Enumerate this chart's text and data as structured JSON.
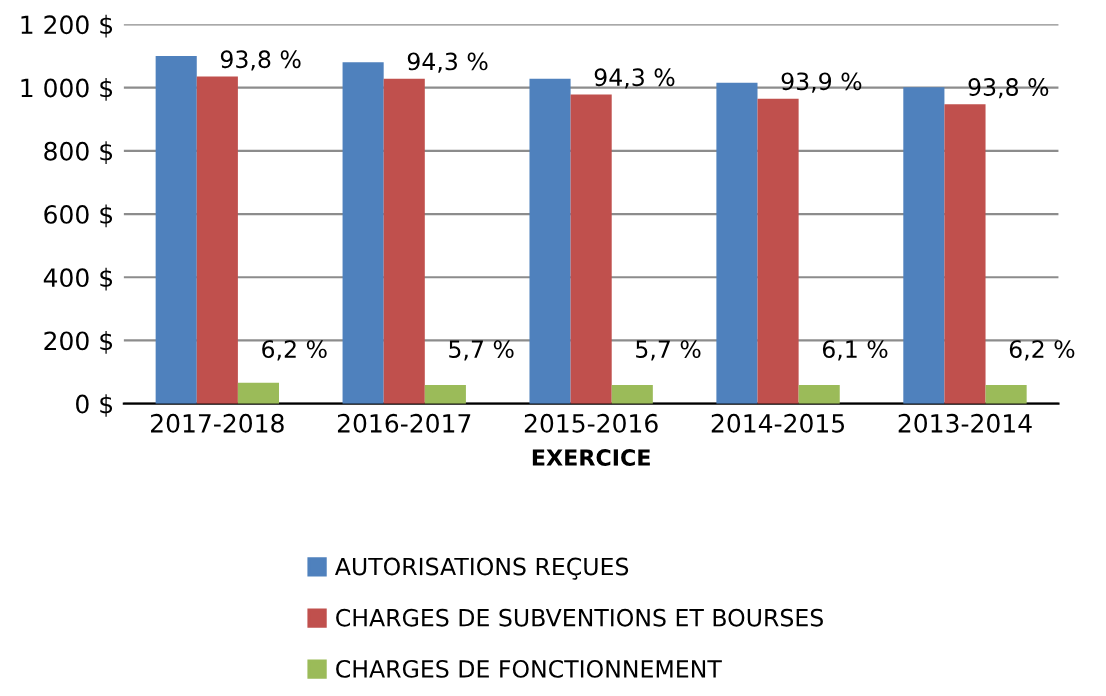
{
  "chart_data": {
    "type": "bar",
    "xlabel": "EXERCICE",
    "categories": [
      "2017-2018",
      "2016-2017",
      "2015-2016",
      "2014-2015",
      "2013-2014"
    ],
    "series": [
      {
        "name": "AUTORISATIONS REÇUES",
        "color": "#4f81bd",
        "values": [
          1100,
          1080,
          1028,
          1015,
          1001
        ]
      },
      {
        "name": "CHARGES DE SUBVENTIONS ET BOURSES",
        "color": "#c0504d",
        "values": [
          1035,
          1028,
          978,
          965,
          947
        ]
      },
      {
        "name": "CHARGES DE FONCTIONNEMENT",
        "color": "#9bbb59",
        "values": [
          66,
          59,
          59,
          59,
          59
        ]
      }
    ],
    "annotations": [
      {
        "text": "93,8 %",
        "x": "2017-2018",
        "y": 1035
      },
      {
        "text": "94,3 %",
        "x": "2016-2017",
        "y": 1028
      },
      {
        "text": "94,3 %",
        "x": "2015-2016",
        "y": 978
      },
      {
        "text": "93,9 %",
        "x": "2014-2015",
        "y": 965
      },
      {
        "text": "93,8 %",
        "x": "2013-2014",
        "y": 947
      },
      "6,2 %",
      "5,7 %",
      "5,7 %",
      "6,1 %",
      "6,2 %"
    ],
    "ylim": [
      0,
      1200
    ],
    "yticks": [
      {
        "value": 0,
        "label": "0 $"
      },
      {
        "value": 200,
        "label": "200 $"
      },
      {
        "value": 400,
        "label": "400 $"
      },
      {
        "value": 600,
        "label": "600 $"
      },
      {
        "value": 800,
        "label": "800 $"
      },
      {
        "value": 1000,
        "label": "1 000 $"
      },
      {
        "value": 1200,
        "label": "1 200 $"
      }
    ],
    "grid": "y",
    "legend": "bottom"
  }
}
